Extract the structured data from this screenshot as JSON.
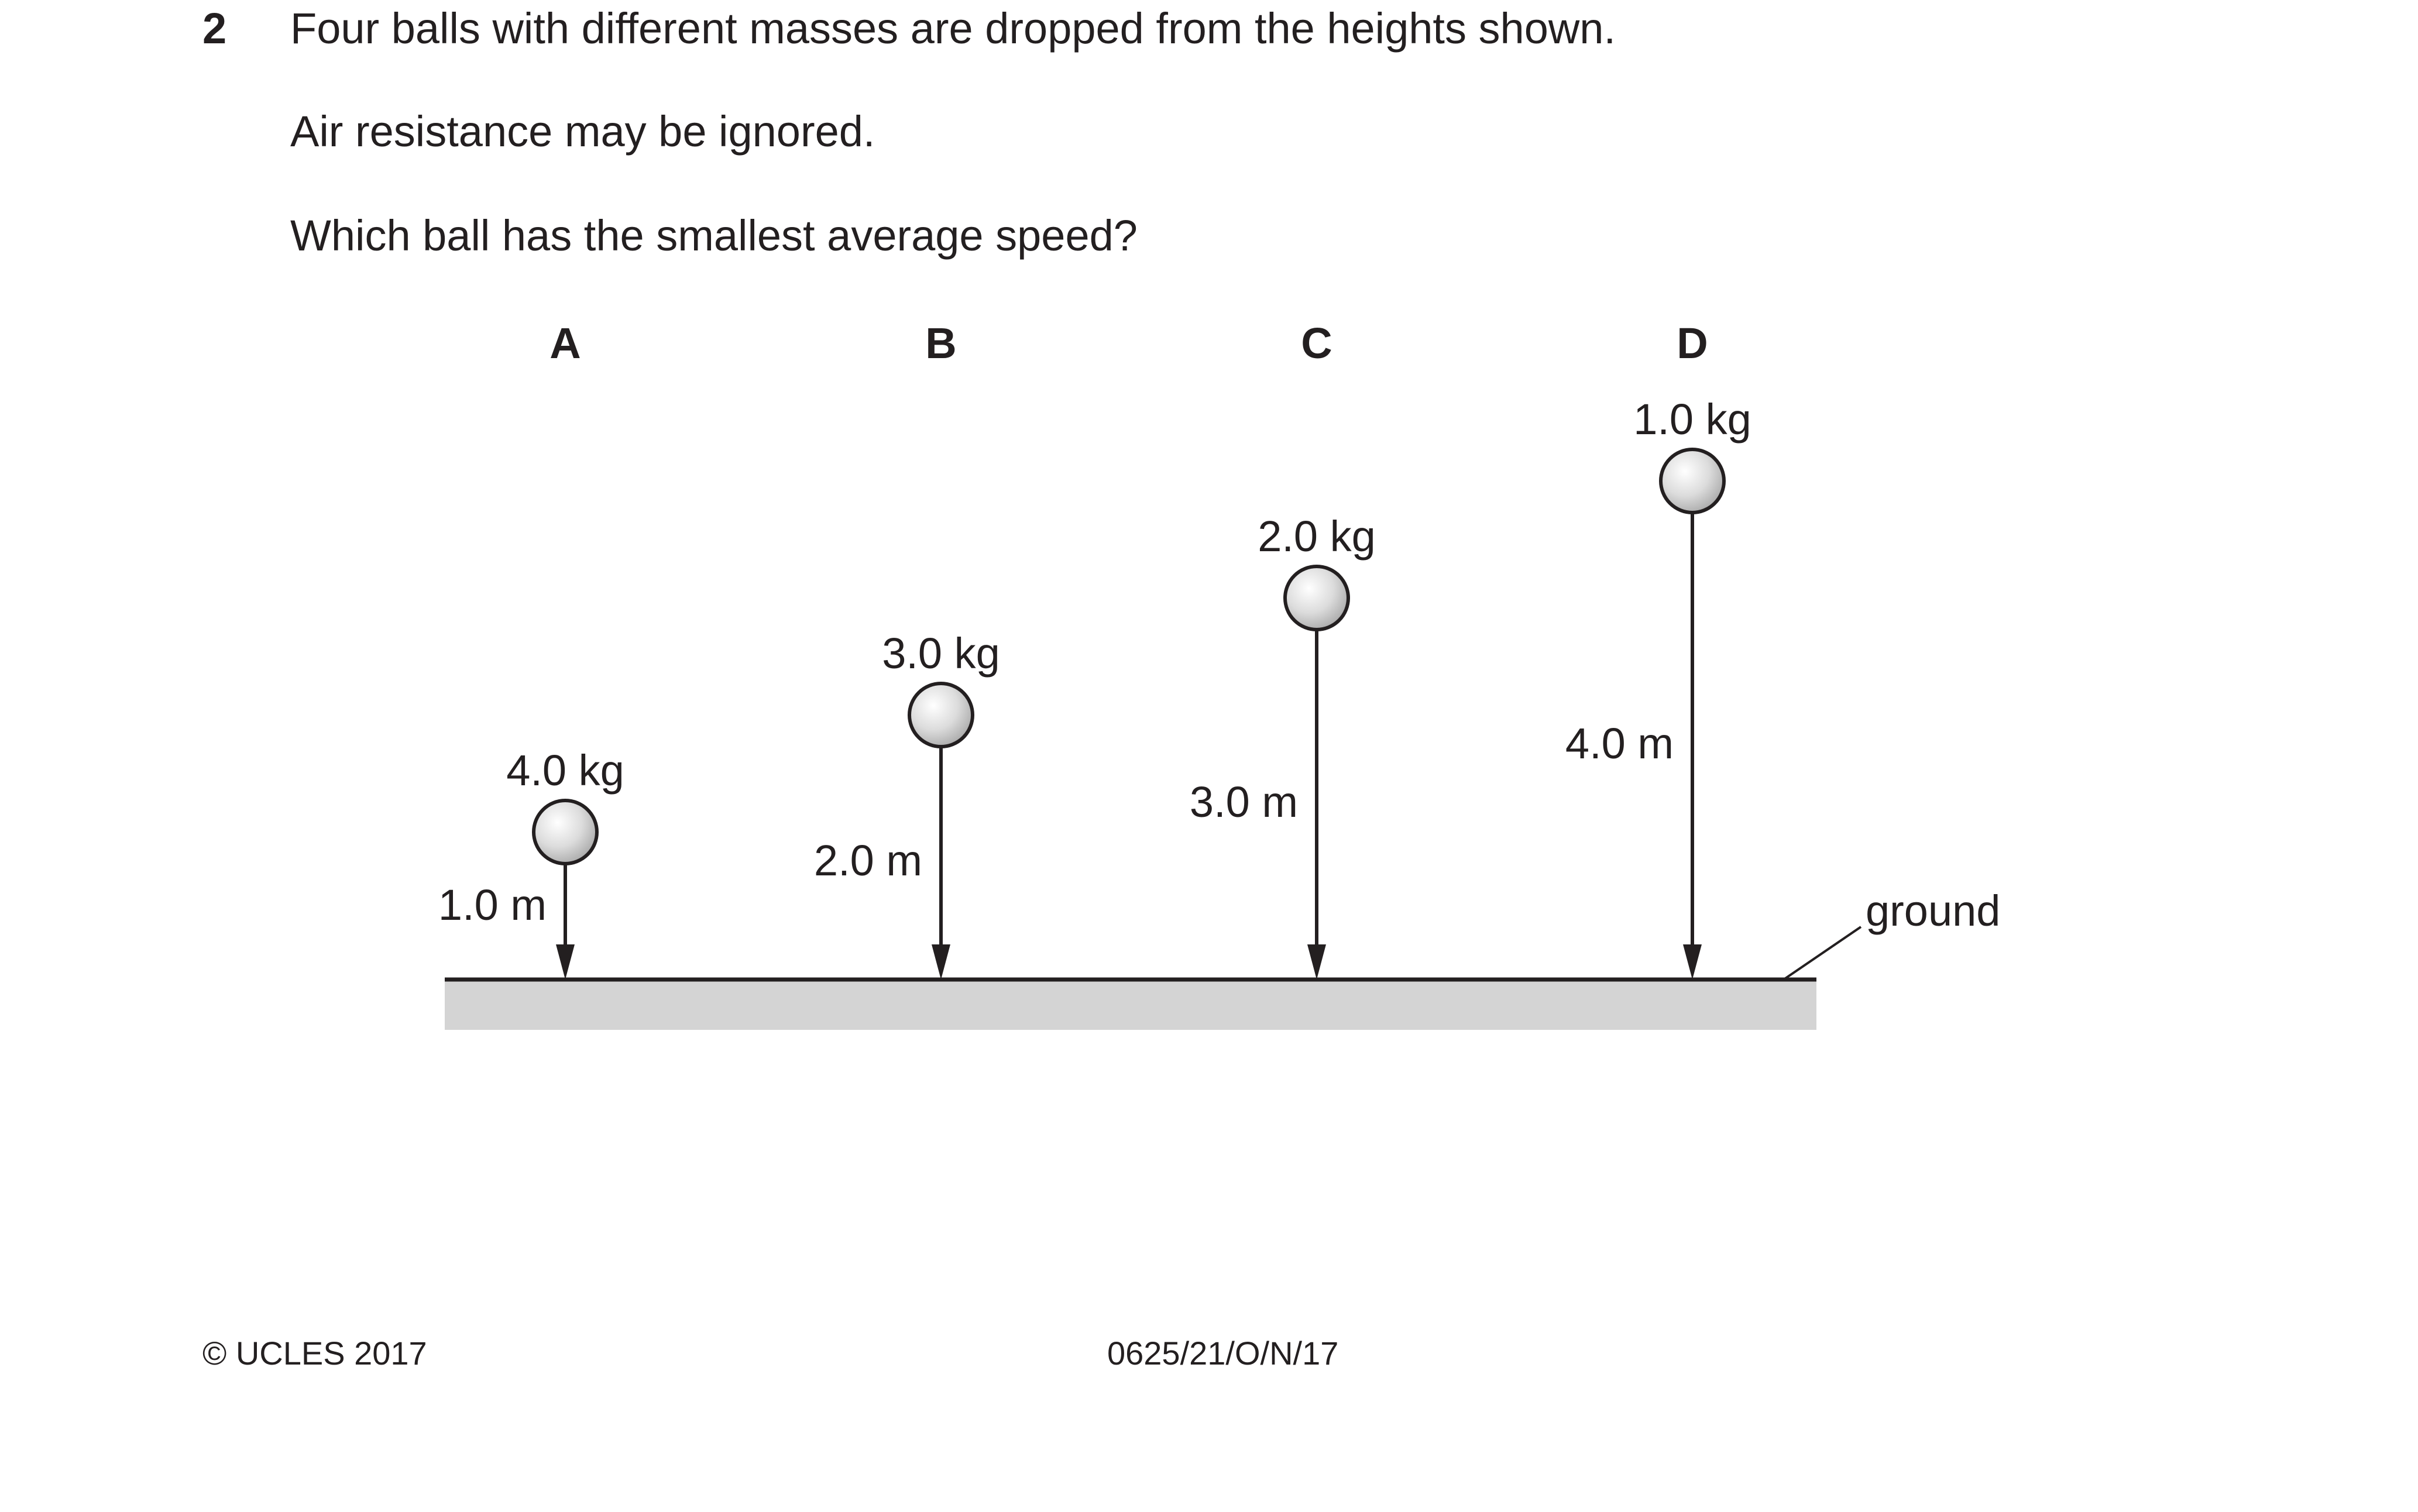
{
  "question": {
    "number": "2",
    "lines": [
      "Four balls with different masses are dropped from the heights shown.",
      "Air resistance may be ignored.",
      "Which ball has the smallest average speed?"
    ]
  },
  "diagram": {
    "balls": [
      {
        "letter": "A",
        "mass": "4.0 kg",
        "height": "1.0 m"
      },
      {
        "letter": "B",
        "mass": "3.0 kg",
        "height": "2.0 m"
      },
      {
        "letter": "C",
        "mass": "2.0 kg",
        "height": "3.0 m"
      },
      {
        "letter": "D",
        "mass": "1.0 kg",
        "height": "4.0 m"
      }
    ],
    "ground_label": "ground"
  },
  "footer": {
    "copyright": "© UCLES 2017",
    "code": "0625/21/O/N/17"
  }
}
